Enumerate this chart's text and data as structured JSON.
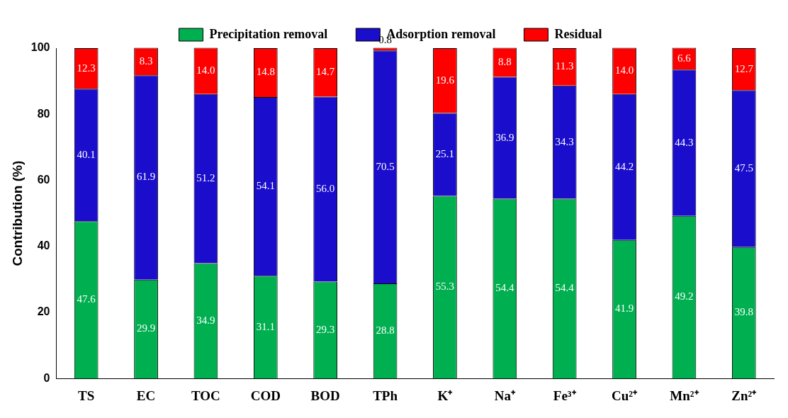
{
  "chart_data": {
    "type": "bar",
    "stacked": true,
    "ylabel": "Contribution (%)",
    "categories": [
      "TS",
      "EC",
      "TOC",
      "COD",
      "BOD",
      "TPh",
      "K⁺",
      "Na⁺",
      "Fe³⁺",
      "Cu²⁺",
      "Mn²⁺",
      "Zn²⁺"
    ],
    "series": [
      {
        "name": "Precipitation removal",
        "color": "#00b050",
        "values": [
          47.6,
          29.9,
          34.9,
          31.1,
          29.3,
          28.8,
          55.3,
          54.4,
          54.4,
          41.9,
          49.2,
          39.8
        ],
        "value_labels": [
          "47.6",
          "29.9",
          "34.9",
          "31.1",
          "29.3",
          "28.8",
          "55.3",
          "54.4",
          "54.4",
          "41.9",
          "49.2",
          "39.8"
        ]
      },
      {
        "name": "Adsorption removal",
        "color": "#1a0dcc",
        "values": [
          40.1,
          61.9,
          51.2,
          54.1,
          56.0,
          70.5,
          25.1,
          36.9,
          34.3,
          44.2,
          44.3,
          47.5
        ],
        "value_labels": [
          "40.1",
          "61.9",
          "51.2",
          "54.1",
          "56.0",
          "70.5",
          "25.1",
          "36.9",
          "34.3",
          "44.2",
          "44.3",
          "47.5"
        ]
      },
      {
        "name": "Residual",
        "color": "#ff0000",
        "values": [
          12.3,
          8.3,
          14.0,
          14.8,
          14.7,
          0.8,
          19.6,
          8.8,
          11.3,
          14.0,
          6.6,
          12.7
        ],
        "value_labels": [
          "12.3",
          "8.3",
          "14.0",
          "14.8",
          "14.7",
          "0.8",
          "19.6",
          "8.8",
          "11.3",
          "14.0",
          "6.6",
          "12.7"
        ]
      }
    ],
    "ylim": [
      0,
      100
    ],
    "yticks": [
      0,
      20,
      40,
      60,
      80,
      100
    ],
    "grid": false,
    "legend": "top"
  }
}
